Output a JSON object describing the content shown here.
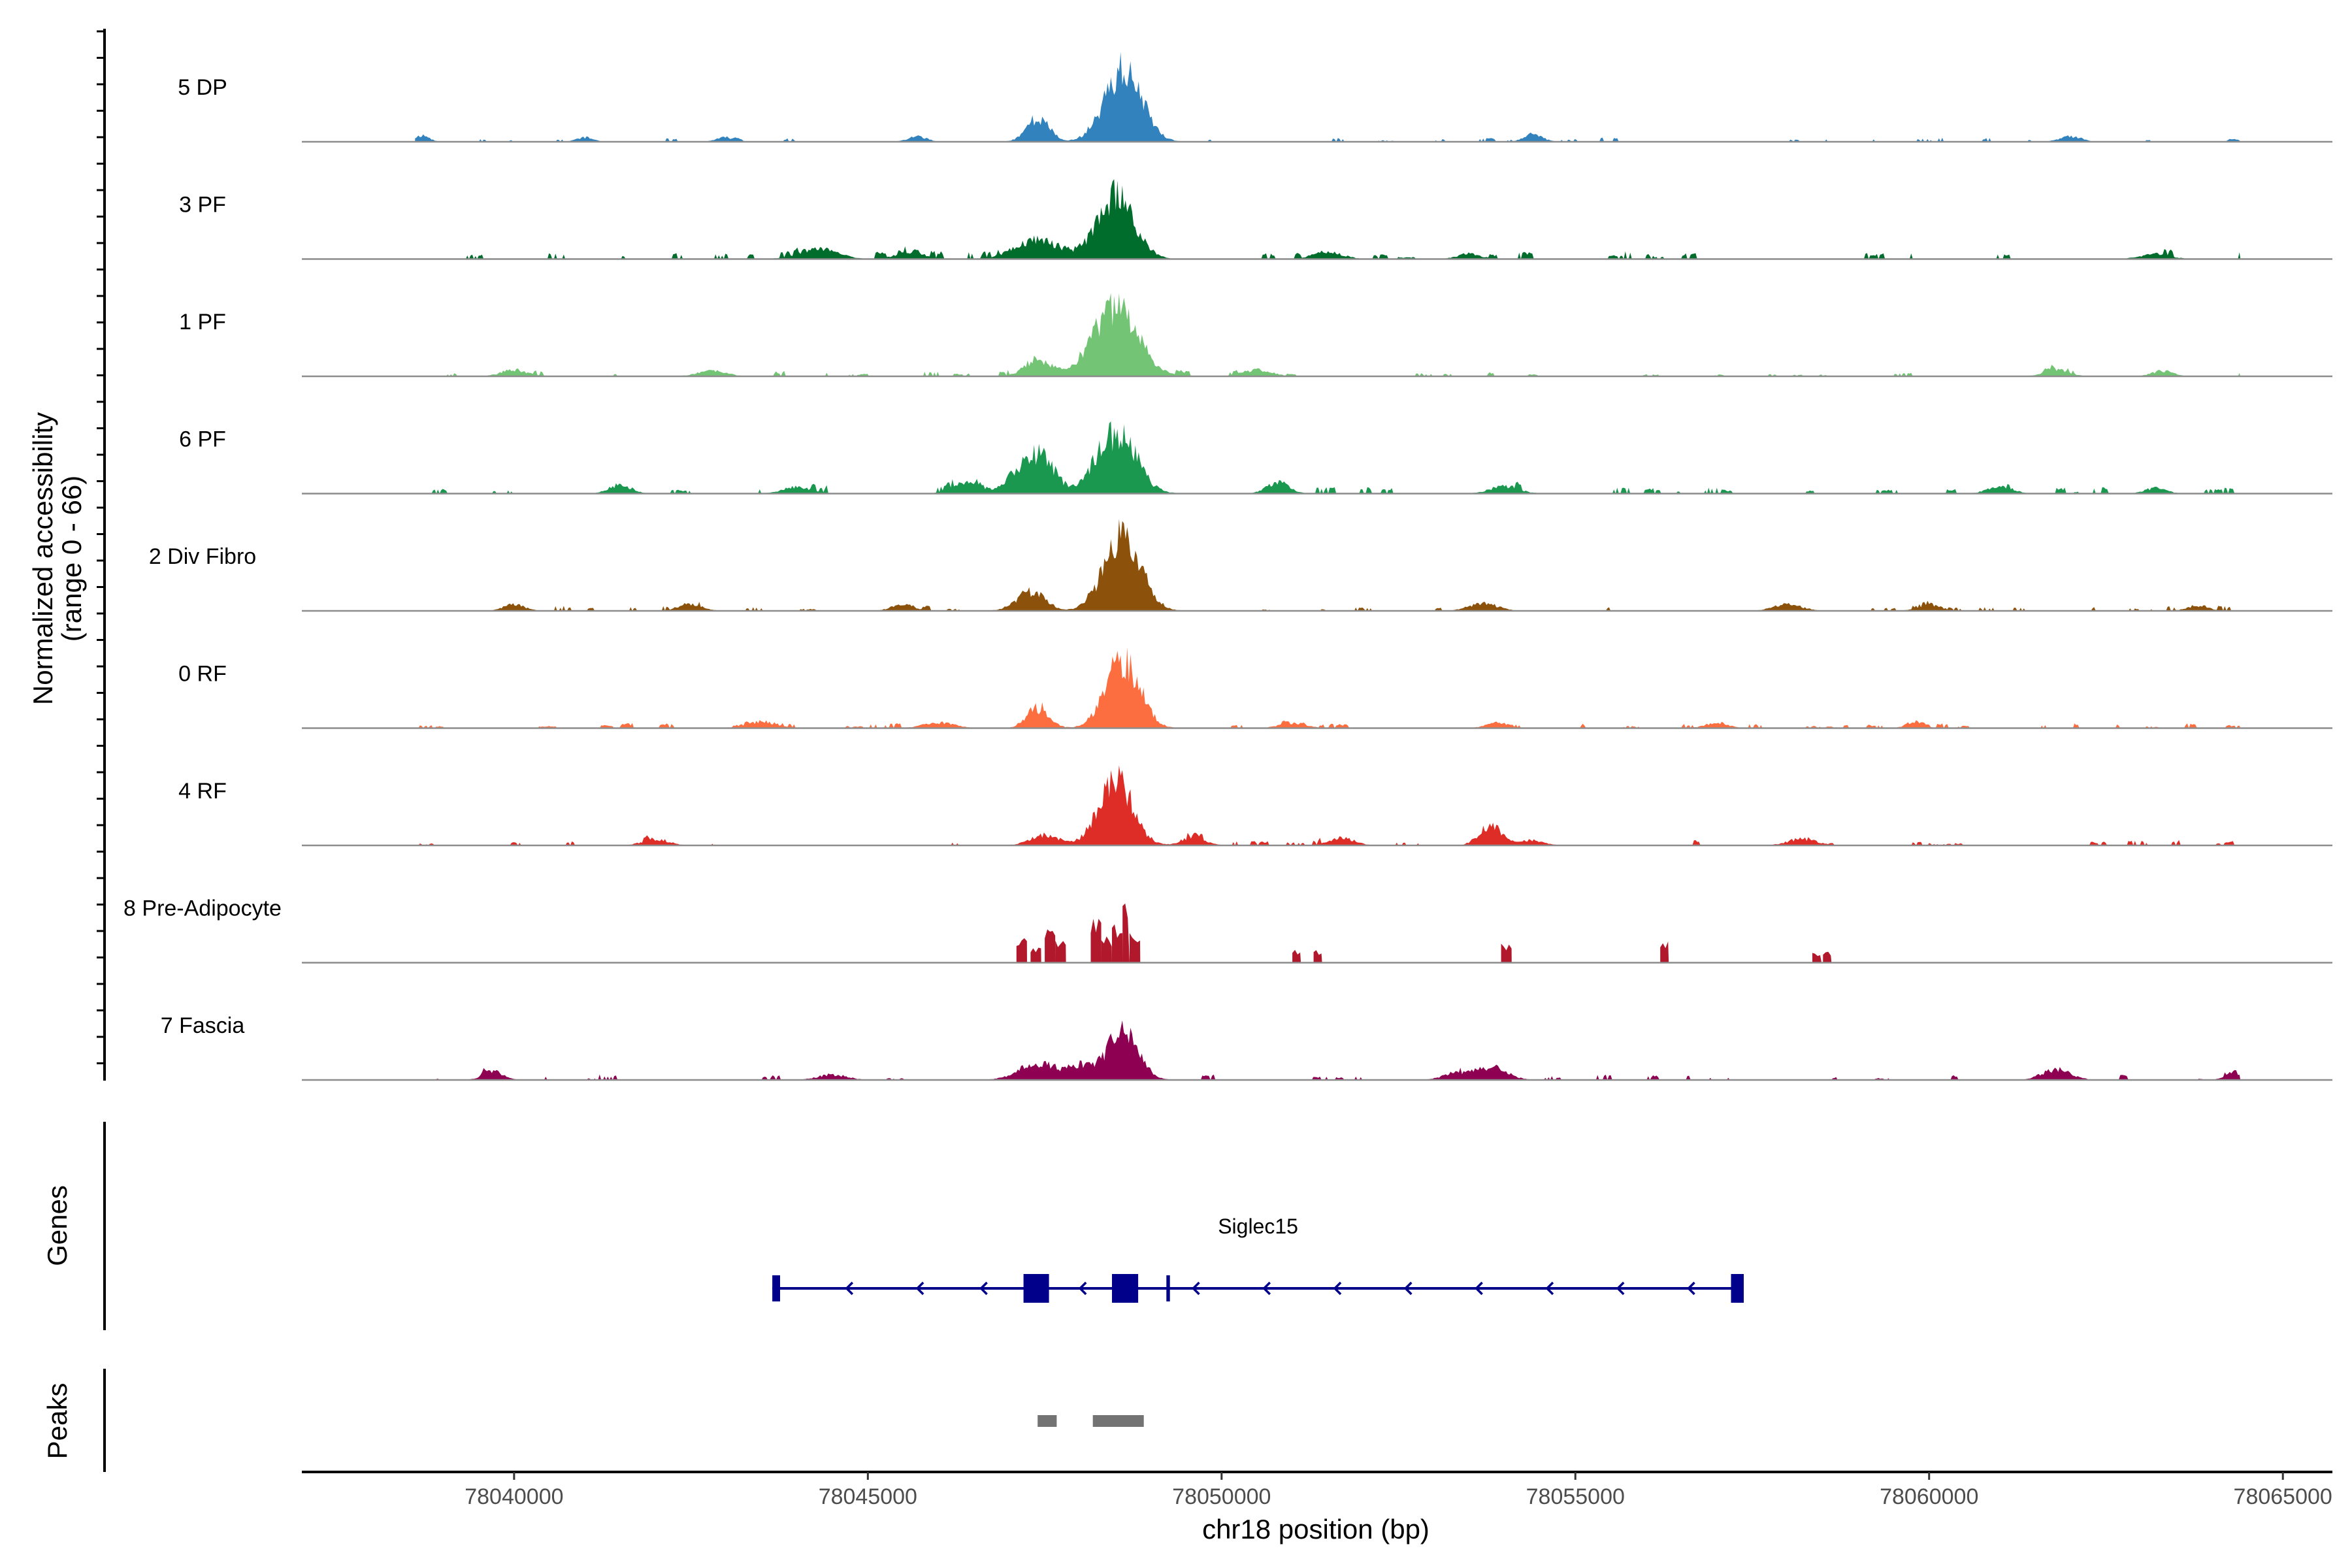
{
  "chart_data": {
    "type": "area",
    "title": "",
    "chromosome": "chr18",
    "xlabel": "chr18 position (bp)",
    "xlim": [
      78037000,
      78065700
    ],
    "xticks": [
      78040000,
      78045000,
      78050000,
      78055000,
      78060000,
      78065000
    ],
    "ylabel_line1": "Normalized accessibility",
    "ylabel_line2": "(range 0 - 66)",
    "ylim": [
      0,
      66
    ],
    "signal_start": 78038600,
    "signal_end": 78064400,
    "tracks": [
      {
        "name": "5 DP",
        "color": "#3182bd",
        "peaks": [
          [
            78038700,
            6,
            100
          ],
          [
            78041000,
            4,
            120
          ],
          [
            78043000,
            4,
            140
          ],
          [
            78045700,
            5,
            130
          ],
          [
            78047400,
            22,
            160
          ],
          [
            78048600,
            66,
            260
          ],
          [
            78054400,
            6,
            140
          ],
          [
            78062000,
            5,
            150
          ],
          [
            78064300,
            3,
            60
          ]
        ],
        "noise": 2.5,
        "coverage": 0.55,
        "seed": 11
      },
      {
        "name": "3 PF",
        "color": "#006d2c",
        "peaks": [
          [
            78044300,
            10,
            260
          ],
          [
            78045600,
            6,
            200
          ],
          [
            78047400,
            18,
            320
          ],
          [
            78048500,
            58,
            260
          ],
          [
            78051500,
            7,
            200
          ],
          [
            78053500,
            5,
            160
          ],
          [
            78063200,
            5,
            200
          ]
        ],
        "noise": 4,
        "coverage": 0.7,
        "seed": 23
      },
      {
        "name": "1 PF",
        "color": "#74c476",
        "peaks": [
          [
            78040000,
            6,
            180
          ],
          [
            78042800,
            5,
            200
          ],
          [
            78047400,
            16,
            180
          ],
          [
            78048500,
            62,
            320
          ],
          [
            78050500,
            6,
            200
          ],
          [
            78061800,
            6,
            180
          ],
          [
            78063300,
            5,
            150
          ]
        ],
        "noise": 3,
        "coverage": 0.65,
        "seed": 37
      },
      {
        "name": "6 PF",
        "color": "#1a9850",
        "peaks": [
          [
            78041500,
            8,
            160
          ],
          [
            78044000,
            6,
            200
          ],
          [
            78046400,
            10,
            200
          ],
          [
            78047200,
            22,
            220
          ],
          [
            78047500,
            24,
            180
          ],
          [
            78048500,
            55,
            280
          ],
          [
            78050800,
            10,
            160
          ],
          [
            78054000,
            7,
            200
          ],
          [
            78061000,
            6,
            180
          ],
          [
            78063200,
            5,
            150
          ]
        ],
        "noise": 4,
        "coverage": 0.7,
        "seed": 41
      },
      {
        "name": "2 Div Fibro",
        "color": "#8c510a",
        "peaks": [
          [
            78040000,
            6,
            150
          ],
          [
            78042500,
            6,
            160
          ],
          [
            78045500,
            6,
            160
          ],
          [
            78047300,
            18,
            200
          ],
          [
            78048600,
            68,
            260
          ],
          [
            78053700,
            7,
            200
          ],
          [
            78058000,
            6,
            200
          ],
          [
            78060000,
            6,
            160
          ],
          [
            78063800,
            5,
            150
          ]
        ],
        "noise": 3,
        "coverage": 0.6,
        "seed": 53
      },
      {
        "name": "0 RF",
        "color": "#fc6d40",
        "peaks": [
          [
            78043500,
            6,
            220
          ],
          [
            78046000,
            5,
            220
          ],
          [
            78047400,
            18,
            160
          ],
          [
            78048600,
            64,
            240
          ],
          [
            78051000,
            5,
            180
          ],
          [
            78053900,
            5,
            160
          ],
          [
            78057000,
            5,
            160
          ],
          [
            78059800,
            6,
            120
          ]
        ],
        "noise": 3,
        "coverage": 0.8,
        "seed": 67
      },
      {
        "name": "4 RF",
        "color": "#de2d26",
        "peaks": [
          [
            78042000,
            6,
            180
          ],
          [
            78047500,
            10,
            200
          ],
          [
            78048500,
            60,
            240
          ],
          [
            78049600,
            8,
            160
          ],
          [
            78051700,
            7,
            180
          ],
          [
            78053800,
            18,
            160
          ],
          [
            78054400,
            5,
            160
          ],
          [
            78058200,
            6,
            200
          ]
        ],
        "noise": 3,
        "coverage": 0.65,
        "seed": 79
      },
      {
        "name": "8 Pre-Adipocyte",
        "color": "#b2182b",
        "blocks": [
          [
            78047100,
            78047250,
            18
          ],
          [
            78047300,
            78047450,
            12
          ],
          [
            78047500,
            78047650,
            28
          ],
          [
            78047650,
            78047800,
            16
          ],
          [
            78048150,
            78048300,
            38
          ],
          [
            78048300,
            78048450,
            20
          ],
          [
            78048450,
            78048600,
            30
          ],
          [
            78048600,
            78048700,
            46
          ],
          [
            78048700,
            78048850,
            22
          ],
          [
            78051000,
            78051120,
            10
          ],
          [
            78051300,
            78051420,
            10
          ],
          [
            78053950,
            78054100,
            16
          ],
          [
            78056200,
            78056320,
            16
          ],
          [
            78058350,
            78058480,
            8
          ],
          [
            78058500,
            78058620,
            8
          ]
        ],
        "seed": 89
      },
      {
        "name": "7 Fascia",
        "color": "#8e0152",
        "peaks": [
          [
            78039700,
            8,
            140
          ],
          [
            78044500,
            5,
            200
          ],
          [
            78047400,
            16,
            260
          ],
          [
            78048000,
            12,
            180
          ],
          [
            78048600,
            44,
            220
          ],
          [
            78053300,
            6,
            180
          ],
          [
            78053800,
            12,
            220
          ],
          [
            78061800,
            10,
            200
          ],
          [
            78064300,
            6,
            120
          ]
        ],
        "noise": 3,
        "coverage": 0.6,
        "seed": 97
      }
    ],
    "genes_label": "Genes",
    "peaks_label": "Peaks",
    "gene": {
      "name": "Siglec15",
      "start": 78043650,
      "end": 78057380,
      "strand": "-",
      "color": "#00008b",
      "exons": [
        [
          78043650,
          78043760
        ],
        [
          78047200,
          78047560
        ],
        [
          78048450,
          78048820
        ],
        [
          78049220,
          78049270
        ],
        [
          78057200,
          78057380
        ]
      ],
      "intron_marks": [
        78044700,
        78045700,
        78046600,
        78048000,
        78049600,
        78050600,
        78051600,
        78052600,
        78053600,
        78054600,
        78055600,
        78056600
      ]
    },
    "peak_regions": [
      [
        78047400,
        78047670
      ],
      [
        78048180,
        78048900
      ]
    ],
    "peak_color": "#737373"
  }
}
